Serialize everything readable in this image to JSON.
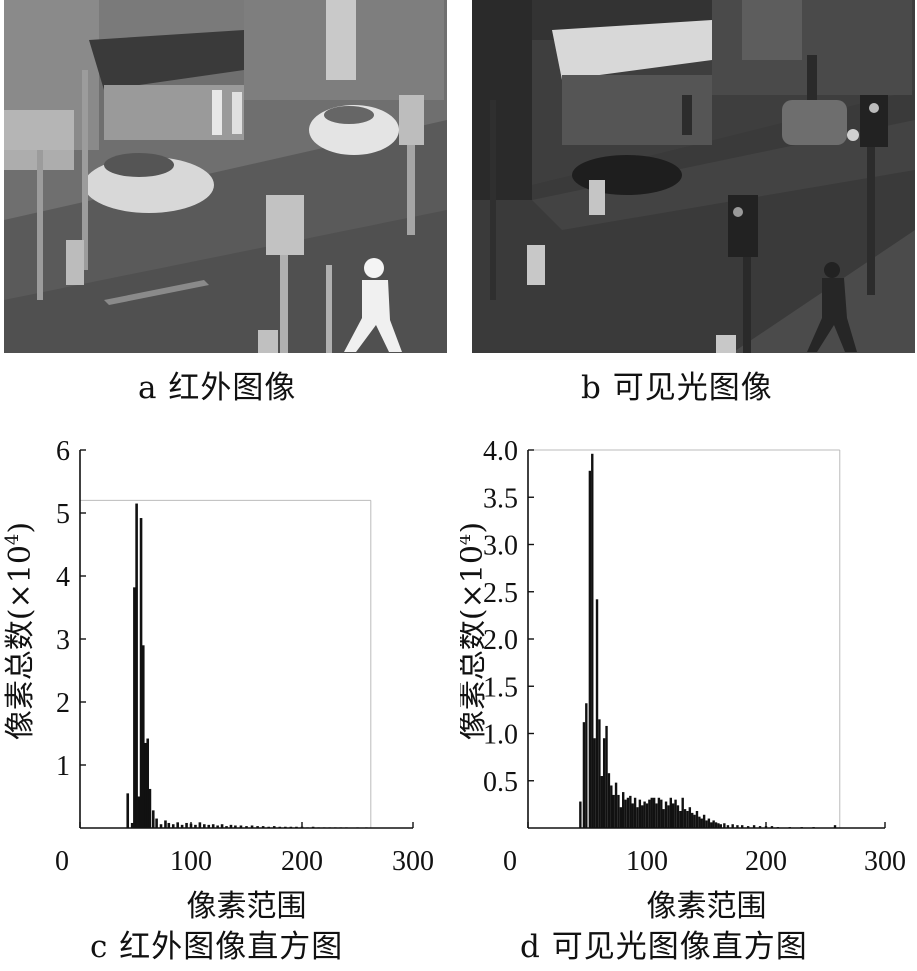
{
  "figure": {
    "captions": {
      "a": "a 红外图像",
      "b": "b 可见光图像",
      "c": "c 红外图像直方图",
      "d": "d 可见光图像直方图"
    }
  },
  "colors": {
    "bars": "#111111",
    "axis": "#111111",
    "frame": "#bbbbbb",
    "background": "#ffffff"
  },
  "chart_data": [
    {
      "id": "histogram-infrared",
      "type": "bar",
      "title": "",
      "xlabel": "像素范围",
      "ylabel": "像素总数(×10⁴)",
      "ylabel_main": "像素总数(×10",
      "ylabel_exp": "4",
      "ylabel_close": ")",
      "xlim": [
        0,
        300
      ],
      "ylim": [
        0,
        6
      ],
      "frame_ylim": 5.2,
      "frame_xlim": 262,
      "xticks": [
        0,
        100,
        200,
        300
      ],
      "xtick_labels": [
        "0",
        "100",
        "200",
        "300"
      ],
      "yticks": [
        1,
        2,
        3,
        4,
        5,
        6
      ],
      "ytick_labels": [
        "1",
        "2",
        "3",
        "4",
        "5",
        "6"
      ],
      "x": [
        43,
        47,
        49,
        51,
        53,
        55,
        57,
        59,
        61,
        63,
        66,
        69,
        73,
        77,
        80,
        84,
        88,
        92,
        96,
        100,
        104,
        108,
        112,
        116,
        120,
        124,
        128,
        132,
        136,
        140,
        145,
        150,
        155,
        160,
        165,
        170,
        175,
        180,
        185,
        190,
        195,
        200,
        205,
        210,
        215,
        220,
        225,
        230,
        235,
        240,
        250,
        258
      ],
      "values": [
        0.55,
        0.08,
        3.82,
        5.15,
        0.5,
        4.92,
        2.9,
        1.35,
        1.42,
        0.62,
        0.28,
        0.15,
        0.06,
        0.12,
        0.08,
        0.06,
        0.09,
        0.05,
        0.08,
        0.07,
        0.05,
        0.09,
        0.06,
        0.05,
        0.06,
        0.04,
        0.06,
        0.03,
        0.05,
        0.04,
        0.04,
        0.03,
        0.04,
        0.03,
        0.03,
        0.02,
        0.03,
        0.02,
        0.02,
        0.02,
        0.02,
        0.02,
        0.01,
        0.02,
        0.01,
        0.01,
        0.01,
        0.01,
        0.01,
        0.01,
        0.01,
        0.01
      ]
    },
    {
      "id": "histogram-visible",
      "type": "bar",
      "title": "",
      "xlabel": "像素范围",
      "ylabel": "像素总数(×10⁴)",
      "ylabel_main": "像素总数(×10",
      "ylabel_exp": "4",
      "ylabel_close": ")",
      "xlim": [
        0,
        300
      ],
      "ylim": [
        0,
        4.0
      ],
      "frame_ylim": 4.0,
      "frame_xlim": 262,
      "xticks": [
        0,
        100,
        200,
        300
      ],
      "xtick_labels": [
        "0",
        "100",
        "200",
        "300"
      ],
      "yticks": [
        0.5,
        1.0,
        1.5,
        2.0,
        2.5,
        3.0,
        3.5,
        4.0
      ],
      "ytick_labels": [
        "0.5",
        "1.0",
        "1.5",
        "2.0",
        "2.5",
        "3.0",
        "3.5",
        "4.0"
      ],
      "x": [
        44,
        47,
        49,
        52,
        54,
        56,
        58,
        60,
        62,
        64,
        66,
        68,
        70,
        72,
        74,
        76,
        78,
        80,
        82,
        84,
        86,
        88,
        90,
        92,
        94,
        96,
        98,
        100,
        102,
        104,
        106,
        108,
        110,
        112,
        114,
        116,
        118,
        120,
        122,
        124,
        126,
        128,
        130,
        132,
        134,
        136,
        138,
        140,
        142,
        144,
        146,
        148,
        150,
        152,
        154,
        156,
        158,
        160,
        162,
        165,
        168,
        172,
        176,
        180,
        185,
        190,
        195,
        200,
        205,
        210,
        220,
        230,
        240,
        258
      ],
      "values": [
        0.28,
        1.12,
        1.32,
        3.78,
        3.96,
        0.95,
        2.42,
        1.15,
        0.55,
        0.95,
        1.08,
        0.58,
        0.45,
        0.35,
        0.48,
        0.35,
        0.22,
        0.38,
        0.3,
        0.32,
        0.34,
        0.26,
        0.32,
        0.22,
        0.3,
        0.24,
        0.28,
        0.26,
        0.3,
        0.32,
        0.32,
        0.26,
        0.32,
        0.3,
        0.2,
        0.28,
        0.24,
        0.32,
        0.26,
        0.3,
        0.24,
        0.18,
        0.32,
        0.2,
        0.18,
        0.22,
        0.16,
        0.14,
        0.18,
        0.12,
        0.1,
        0.14,
        0.08,
        0.1,
        0.06,
        0.08,
        0.06,
        0.05,
        0.04,
        0.05,
        0.03,
        0.04,
        0.03,
        0.03,
        0.02,
        0.03,
        0.02,
        0.02,
        0.02,
        0.01,
        0.01,
        0.01,
        0.01,
        0.03
      ]
    }
  ]
}
